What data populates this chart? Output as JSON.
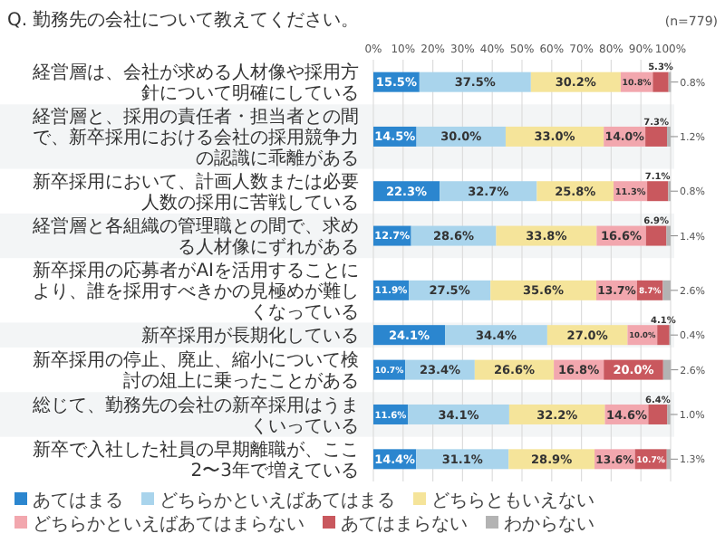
{
  "chart_data": {
    "type": "bar",
    "orientation": "horizontal",
    "stacked": true,
    "title": "Q. 勤務先の会社について教えてください。",
    "annotations": [
      "(n=779)"
    ],
    "categories": [
      "経営層は、会社が求める人材像や採用方針について明確にしている",
      "経営層と、採用の責任者・担当者との間で、新卒採用における会社の採用競争力の認識に乖離がある",
      "新卒採用において、計画人数または必要人数の採用に苦戦している",
      "経営層と各組織の管理職との間で、求める人材像にずれがある",
      "新卒採用の応募者がAIを活用することにより、誰を採用すべきかの見極めが難しくなっている",
      "新卒採用が長期化している",
      "新卒採用の停止、廃止、縮小について検討の俎上に乗ったことがある",
      "総じて、勤務先の会社の新卒採用はうまくいっている",
      "新卒で入社した社員の早期離職が、ここ2〜3年で増えている"
    ],
    "xlim": [
      0,
      100
    ],
    "xticks": [
      {
        "value": 0,
        "label": "0%"
      },
      {
        "value": 10,
        "label": "10%"
      },
      {
        "value": 20,
        "label": "20%"
      },
      {
        "value": 30,
        "label": "30%"
      },
      {
        "value": 40,
        "label": "40%"
      },
      {
        "value": 50,
        "label": "50%"
      },
      {
        "value": 60,
        "label": "60%"
      },
      {
        "value": 70,
        "label": "70%"
      },
      {
        "value": 80,
        "label": "80%"
      },
      {
        "value": 90,
        "label": "90%"
      },
      {
        "value": 100,
        "label": "100%"
      }
    ],
    "grid": "x",
    "legend": "bottom",
    "series": [
      {
        "name": "あてはまる",
        "color": "#2b86cf",
        "values": [
          15.5,
          14.5,
          22.3,
          12.7,
          11.9,
          24.1,
          10.7,
          11.6,
          14.4
        ],
        "value_labels": [
          "15.5%",
          "14.5%",
          "22.3%",
          "12.7%",
          "11.9%",
          "24.1%",
          "10.7%",
          "11.6%",
          "14.4%"
        ]
      },
      {
        "name": "どちらかといえばあてはまる",
        "color": "#a9d4ec",
        "values": [
          37.5,
          30.0,
          32.7,
          28.6,
          27.5,
          34.4,
          23.4,
          34.1,
          31.1
        ],
        "value_labels": [
          "37.5%",
          "30.0%",
          "32.7%",
          "28.6%",
          "27.5%",
          "34.4%",
          "23.4%",
          "34.1%",
          "31.1%"
        ]
      },
      {
        "name": "どちらともいえない",
        "color": "#f5e49a",
        "values": [
          30.2,
          33.0,
          25.8,
          33.8,
          35.6,
          27.0,
          26.6,
          32.2,
          28.9
        ],
        "value_labels": [
          "30.2%",
          "33.0%",
          "25.8%",
          "33.8%",
          "35.6%",
          "27.0%",
          "26.6%",
          "32.2%",
          "28.9%"
        ]
      },
      {
        "name": "どちらかといえばあてはまらない",
        "color": "#f2a7ae",
        "values": [
          10.8,
          14.0,
          11.3,
          16.6,
          13.7,
          10.0,
          16.8,
          14.6,
          13.6
        ],
        "value_labels": [
          "10.8%",
          "14.0%",
          "11.3%",
          "16.6%",
          "13.7%",
          "10.0%",
          "16.8%",
          "14.6%",
          "13.6%"
        ]
      },
      {
        "name": "あてはまらない",
        "color": "#c9585e",
        "values": [
          5.3,
          7.3,
          7.1,
          6.9,
          8.7,
          4.1,
          20.0,
          6.4,
          10.7
        ],
        "value_labels": [
          "5.3%",
          "7.3%",
          "7.1%",
          "6.9%",
          "8.7%",
          "4.1%",
          "20.0%",
          "6.4%",
          "10.7%"
        ]
      },
      {
        "name": "わからない",
        "color": "#b3b3b3",
        "values": [
          0.8,
          1.2,
          0.8,
          1.4,
          2.6,
          0.4,
          2.6,
          1.0,
          1.3
        ],
        "value_labels": [
          "0.8%",
          "1.2%",
          "0.8%",
          "1.4%",
          "2.6%",
          "0.4%",
          "2.6%",
          "1.0%",
          "1.3%"
        ]
      }
    ]
  }
}
